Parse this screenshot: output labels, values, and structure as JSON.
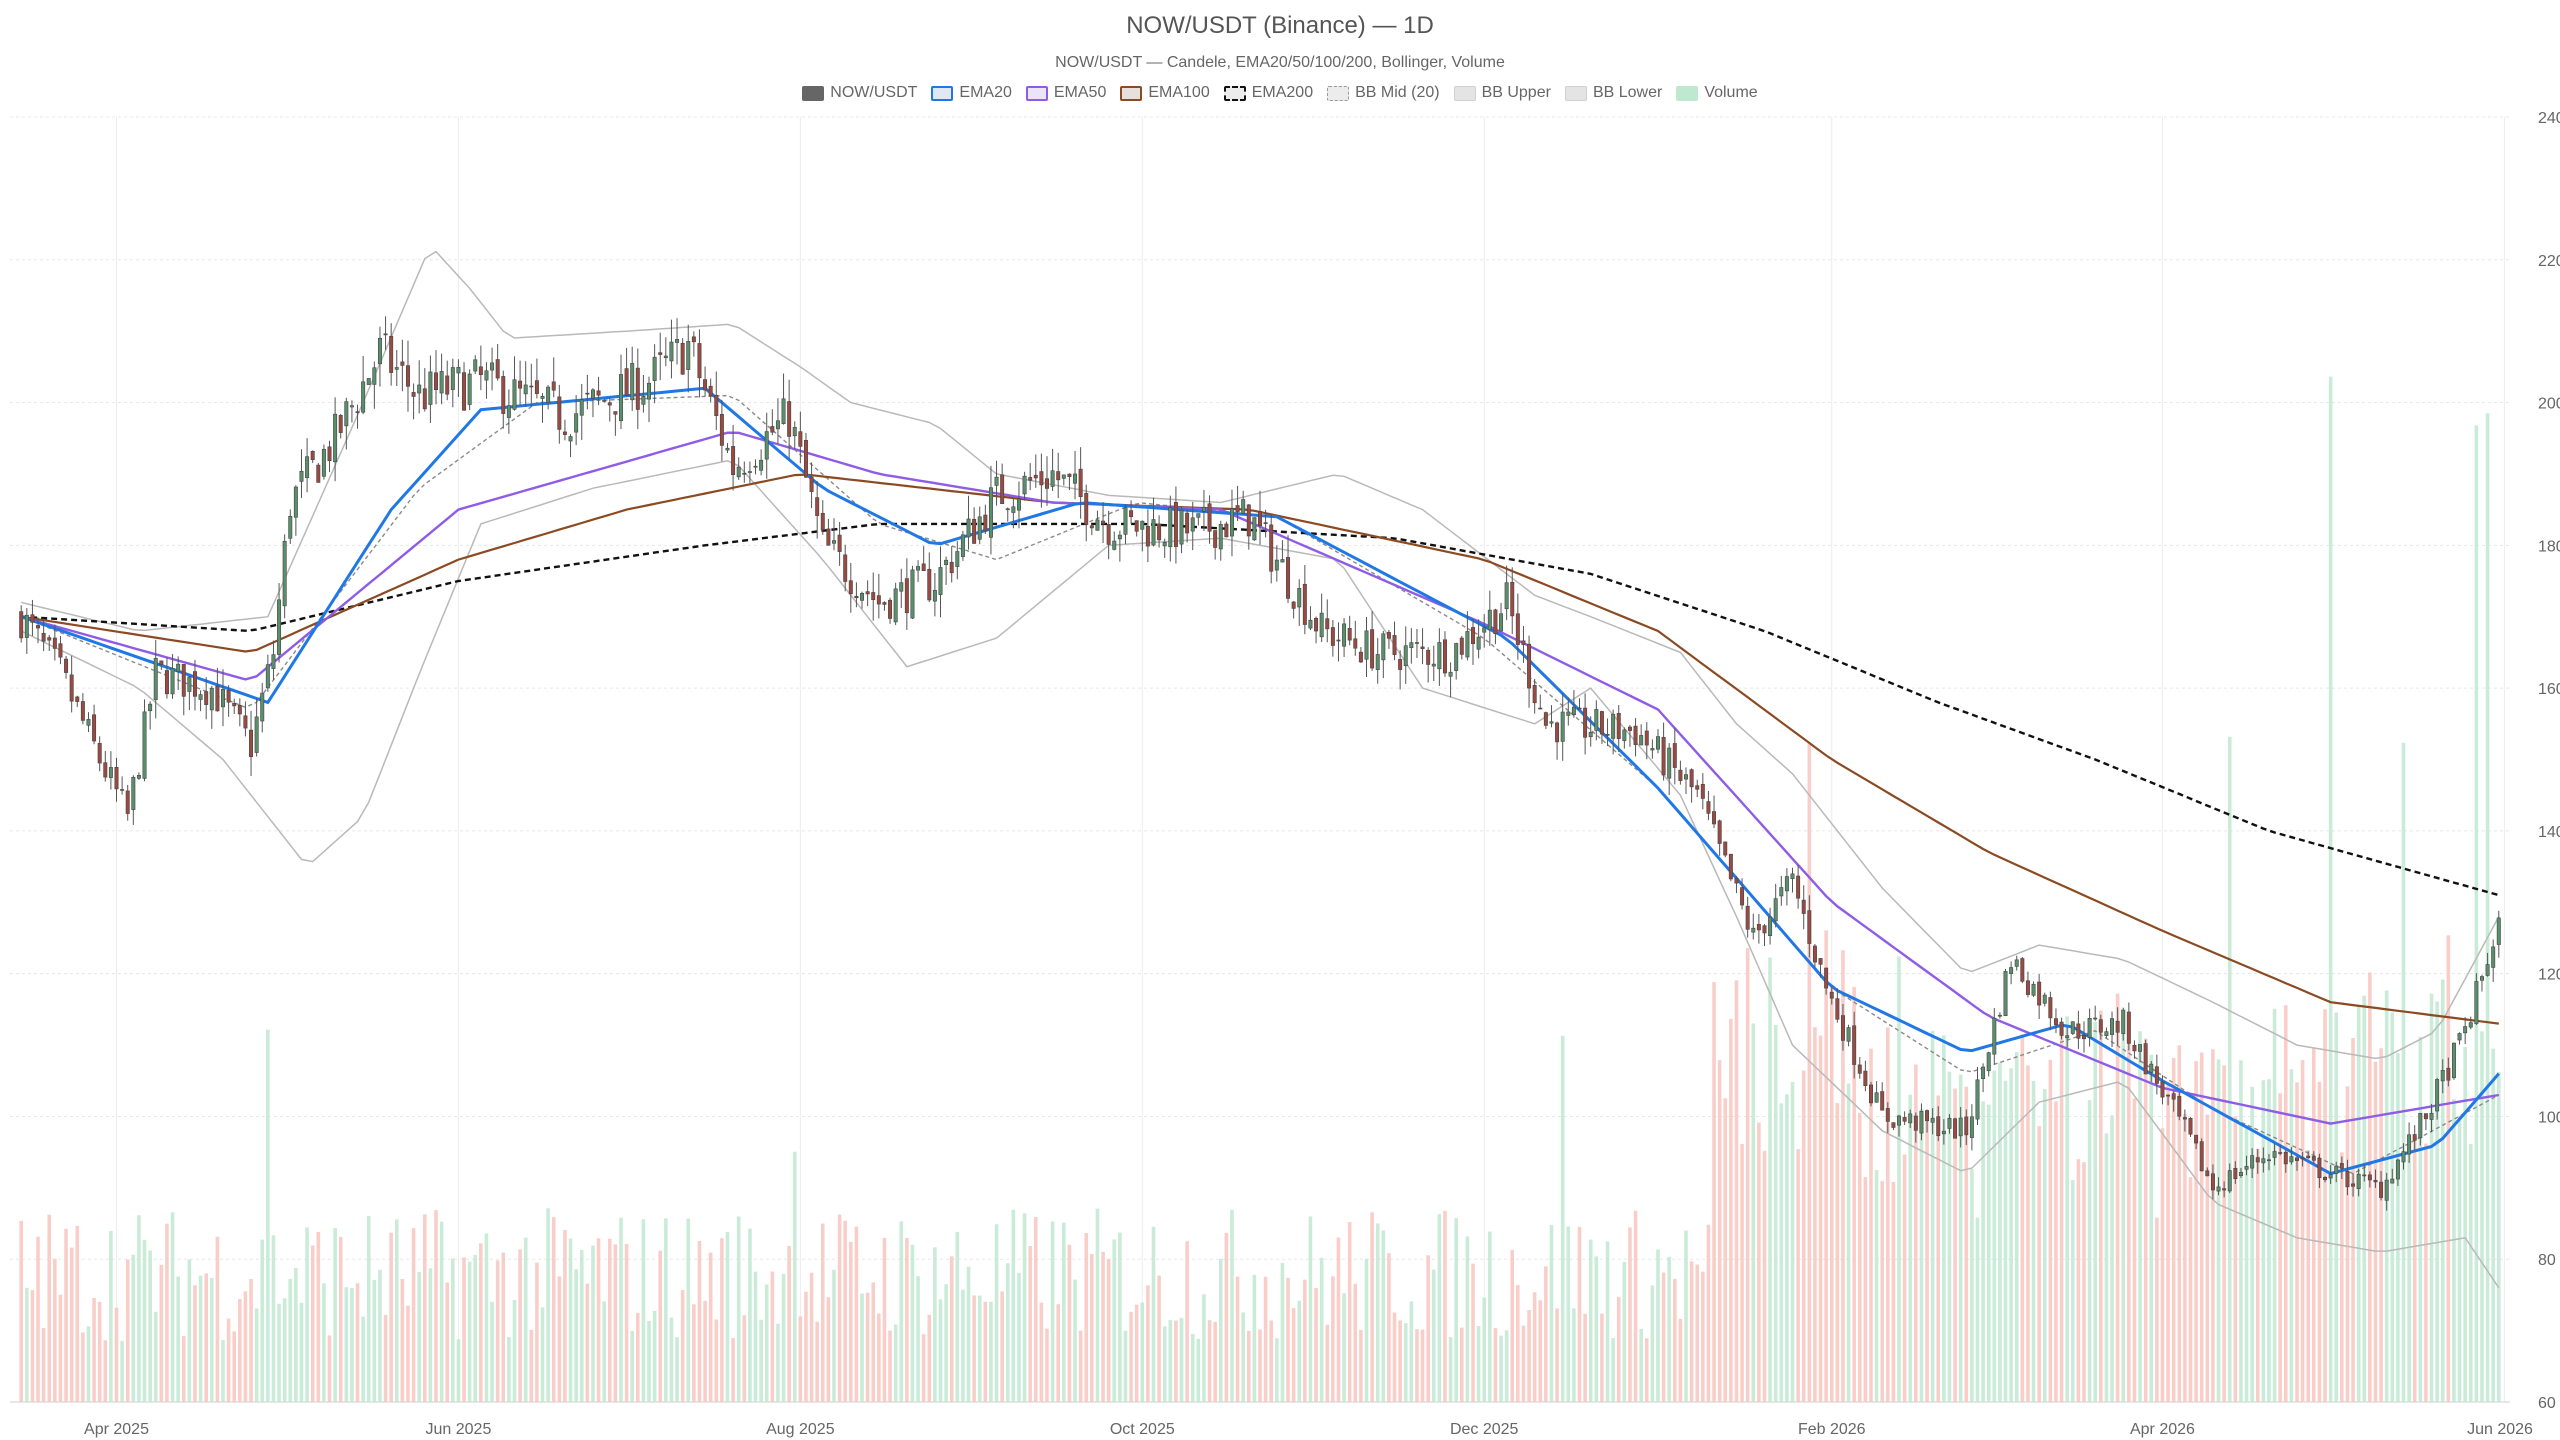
{
  "chart_data": {
    "type": "candlestick",
    "title": "NOW/USDT (Binance) — 1D",
    "subtitle": "NOW/USDT — Candele, EMA20/50/100/200, Bollinger, Volume",
    "ylim": [
      60,
      240
    ],
    "y_ticks": [
      60,
      80,
      100,
      120,
      140,
      160,
      180,
      200,
      220,
      240
    ],
    "x_range": [
      "2025-03-15",
      "2026-05-31"
    ],
    "x_ticks": [
      {
        "date": "2025-04-01",
        "label": "Apr 2025"
      },
      {
        "date": "2025-06-01",
        "label": "Jun 2025"
      },
      {
        "date": "2025-08-01",
        "label": "Aug 2025"
      },
      {
        "date": "2025-10-01",
        "label": "Oct 2025"
      },
      {
        "date": "2025-12-01",
        "label": "Dec 2025"
      },
      {
        "date": "2026-02-01",
        "label": "Feb 2026"
      },
      {
        "date": "2026-04-01",
        "label": "Apr 2026"
      },
      {
        "date": "2026-06-01",
        "label": "Jun 2026"
      }
    ],
    "grid": true,
    "legend_position": "top",
    "colors": {
      "up": "#5a8f6c",
      "down": "#9b4a41",
      "ema20": "#1f78e6",
      "ema50": "#8e5ce6",
      "ema100": "#8b4a22",
      "ema200": "#111111",
      "bb": "#b9b9b9",
      "vol_up": "#bfe8d0",
      "vol_down": "#f8c6bf"
    },
    "legend": [
      {
        "label": "NOW/USDT",
        "swatch": "candle"
      },
      {
        "label": "EMA20",
        "swatch": "ema20"
      },
      {
        "label": "EMA50",
        "swatch": "ema50"
      },
      {
        "label": "EMA100",
        "swatch": "ema100"
      },
      {
        "label": "EMA200",
        "swatch": "ema200"
      },
      {
        "label": "BB Mid (20)",
        "swatch": "bbmid"
      },
      {
        "label": "BB Upper",
        "swatch": "bb"
      },
      {
        "label": "BB Lower",
        "swatch": "bb"
      },
      {
        "label": "Volume",
        "swatch": "volume"
      }
    ],
    "close_anchors": [
      [
        "2025-03-15",
        170
      ],
      [
        "2025-03-22",
        162
      ],
      [
        "2025-03-29",
        150
      ],
      [
        "2025-04-03",
        142
      ],
      [
        "2025-04-08",
        162
      ],
      [
        "2025-04-18",
        160
      ],
      [
        "2025-04-25",
        152
      ],
      [
        "2025-04-29",
        165
      ],
      [
        "2025-05-02",
        186
      ],
      [
        "2025-05-10",
        195
      ],
      [
        "2025-05-18",
        207
      ],
      [
        "2025-05-25",
        201
      ],
      [
        "2025-06-05",
        203
      ],
      [
        "2025-06-20",
        198
      ],
      [
        "2025-07-05",
        203
      ],
      [
        "2025-07-12",
        208
      ],
      [
        "2025-07-20",
        191
      ],
      [
        "2025-07-30",
        198
      ],
      [
        "2025-08-05",
        180
      ],
      [
        "2025-08-15",
        172
      ],
      [
        "2025-08-25",
        175
      ],
      [
        "2025-09-05",
        187
      ],
      [
        "2025-09-15",
        190
      ],
      [
        "2025-09-25",
        183
      ],
      [
        "2025-10-10",
        182
      ],
      [
        "2025-10-20",
        184
      ],
      [
        "2025-11-02",
        168
      ],
      [
        "2025-11-12",
        165
      ],
      [
        "2025-11-25",
        165
      ],
      [
        "2025-12-05",
        172
      ],
      [
        "2025-12-12",
        155
      ],
      [
        "2025-12-28",
        154
      ],
      [
        "2026-01-08",
        145
      ],
      [
        "2026-01-18",
        125
      ],
      [
        "2026-01-25",
        133
      ],
      [
        "2026-01-31",
        118
      ],
      [
        "2026-02-10",
        100
      ],
      [
        "2026-02-25",
        98
      ],
      [
        "2026-03-05",
        122
      ],
      [
        "2026-03-15",
        112
      ],
      [
        "2026-03-25",
        113
      ],
      [
        "2026-04-05",
        98
      ],
      [
        "2026-04-10",
        90
      ],
      [
        "2026-04-20",
        95
      ],
      [
        "2026-05-01",
        92
      ],
      [
        "2026-05-10",
        90
      ],
      [
        "2026-05-18",
        100
      ],
      [
        "2026-05-25",
        112
      ],
      [
        "2026-05-31",
        127
      ]
    ],
    "ema20": [
      [
        "2025-03-15",
        170
      ],
      [
        "2025-04-28",
        158
      ],
      [
        "2025-05-20",
        185
      ],
      [
        "2025-06-05",
        199
      ],
      [
        "2025-07-15",
        202
      ],
      [
        "2025-08-05",
        188
      ],
      [
        "2025-08-25",
        180
      ],
      [
        "2025-09-20",
        186
      ],
      [
        "2025-10-25",
        184
      ],
      [
        "2025-12-05",
        167
      ],
      [
        "2026-01-01",
        146
      ],
      [
        "2026-02-01",
        118
      ],
      [
        "2026-02-25",
        109
      ],
      [
        "2026-03-15",
        113
      ],
      [
        "2026-04-01",
        105
      ],
      [
        "2026-05-01",
        92
      ],
      [
        "2026-05-20",
        96
      ],
      [
        "2026-05-31",
        106
      ]
    ],
    "ema50": [
      [
        "2025-03-15",
        170
      ],
      [
        "2025-04-25",
        161
      ],
      [
        "2025-06-01",
        185
      ],
      [
        "2025-07-20",
        196
      ],
      [
        "2025-08-15",
        190
      ],
      [
        "2025-09-15",
        186
      ],
      [
        "2025-10-15",
        185
      ],
      [
        "2025-12-01",
        169
      ],
      [
        "2026-01-01",
        157
      ],
      [
        "2026-02-01",
        130
      ],
      [
        "2026-03-01",
        114
      ],
      [
        "2026-04-01",
        104
      ],
      [
        "2026-05-01",
        99
      ],
      [
        "2026-05-31",
        103
      ]
    ],
    "ema100": [
      [
        "2025-03-15",
        170
      ],
      [
        "2025-04-25",
        165
      ],
      [
        "2025-06-01",
        178
      ],
      [
        "2025-07-01",
        185
      ],
      [
        "2025-08-01",
        190
      ],
      [
        "2025-09-15",
        186
      ],
      [
        "2025-10-20",
        185
      ],
      [
        "2025-12-01",
        178
      ],
      [
        "2026-01-01",
        168
      ],
      [
        "2026-02-01",
        150
      ],
      [
        "2026-03-01",
        137
      ],
      [
        "2026-04-01",
        126
      ],
      [
        "2026-05-01",
        116
      ],
      [
        "2026-05-31",
        113
      ]
    ],
    "ema200": [
      [
        "2025-03-15",
        170
      ],
      [
        "2025-04-25",
        168
      ],
      [
        "2025-06-01",
        175
      ],
      [
        "2025-07-15",
        180
      ],
      [
        "2025-08-15",
        183
      ],
      [
        "2025-10-01",
        183
      ],
      [
        "2025-11-15",
        181
      ],
      [
        "2025-12-20",
        176
      ],
      [
        "2026-01-20",
        168
      ],
      [
        "2026-02-20",
        158
      ],
      [
        "2026-03-20",
        150
      ],
      [
        "2026-04-20",
        140
      ],
      [
        "2026-05-31",
        131
      ]
    ],
    "bb_mid": [
      [
        "2025-03-15",
        170
      ],
      [
        "2025-04-25",
        157
      ],
      [
        "2025-05-25",
        188
      ],
      [
        "2025-06-15",
        200
      ],
      [
        "2025-07-20",
        201
      ],
      [
        "2025-08-15",
        183
      ],
      [
        "2025-09-05",
        178
      ],
      [
        "2025-09-30",
        186
      ],
      [
        "2025-10-25",
        184
      ],
      [
        "2025-12-01",
        167
      ],
      [
        "2026-01-01",
        146
      ],
      [
        "2026-02-01",
        118
      ],
      [
        "2026-02-25",
        106
      ],
      [
        "2026-03-20",
        112
      ],
      [
        "2026-04-10",
        101
      ],
      [
        "2026-05-05",
        92
      ],
      [
        "2026-05-31",
        103
      ]
    ],
    "bb_upper": [
      [
        "2025-03-15",
        172
      ],
      [
        "2025-04-05",
        168
      ],
      [
        "2025-04-28",
        170
      ],
      [
        "2025-05-15",
        200
      ],
      [
        "2025-05-27",
        222
      ],
      [
        "2025-06-03",
        216
      ],
      [
        "2025-06-10",
        209
      ],
      [
        "2025-07-01",
        210
      ],
      [
        "2025-07-20",
        211
      ],
      [
        "2025-08-01",
        205
      ],
      [
        "2025-08-10",
        200
      ],
      [
        "2025-08-25",
        197
      ],
      [
        "2025-09-05",
        190
      ],
      [
        "2025-09-25",
        187
      ],
      [
        "2025-10-15",
        186
      ],
      [
        "2025-11-05",
        190
      ],
      [
        "2025-11-20",
        185
      ],
      [
        "2025-12-10",
        173
      ],
      [
        "2025-12-20",
        170
      ],
      [
        "2026-01-05",
        165
      ],
      [
        "2026-01-15",
        155
      ],
      [
        "2026-01-25",
        148
      ],
      [
        "2026-02-10",
        132
      ],
      [
        "2026-02-25",
        120
      ],
      [
        "2026-03-10",
        124
      ],
      [
        "2026-03-25",
        122
      ],
      [
        "2026-04-10",
        116
      ],
      [
        "2026-04-25",
        110
      ],
      [
        "2026-05-10",
        108
      ],
      [
        "2026-05-20",
        112
      ],
      [
        "2026-05-31",
        128
      ]
    ],
    "bb_lower": [
      [
        "2025-03-15",
        168
      ],
      [
        "2025-04-05",
        160
      ],
      [
        "2025-04-20",
        150
      ],
      [
        "2025-05-05",
        135
      ],
      [
        "2025-05-15",
        142
      ],
      [
        "2025-05-25",
        162
      ],
      [
        "2025-06-05",
        183
      ],
      [
        "2025-06-25",
        188
      ],
      [
        "2025-07-20",
        192
      ],
      [
        "2025-08-05",
        178
      ],
      [
        "2025-08-20",
        163
      ],
      [
        "2025-09-05",
        167
      ],
      [
        "2025-09-25",
        180
      ],
      [
        "2025-10-15",
        181
      ],
      [
        "2025-11-05",
        178
      ],
      [
        "2025-11-20",
        160
      ],
      [
        "2025-12-10",
        155
      ],
      [
        "2025-12-20",
        160
      ],
      [
        "2026-01-05",
        145
      ],
      [
        "2026-01-15",
        128
      ],
      [
        "2026-01-25",
        110
      ],
      [
        "2026-02-10",
        98
      ],
      [
        "2026-02-25",
        92
      ],
      [
        "2026-03-10",
        102
      ],
      [
        "2026-03-25",
        105
      ],
      [
        "2026-04-10",
        88
      ],
      [
        "2026-04-25",
        83
      ],
      [
        "2026-05-10",
        81
      ],
      [
        "2026-05-25",
        83
      ],
      [
        "2026-05-31",
        76
      ]
    ],
    "volume_scale_max": 200,
    "volume_spikes": [
      {
        "date": "2025-04-28",
        "value": 61
      },
      {
        "date": "2025-07-31",
        "value": 41
      },
      {
        "date": "2025-12-15",
        "value": 60
      },
      {
        "date": "2026-01-28",
        "value": 108
      },
      {
        "date": "2026-02-05",
        "value": 68
      },
      {
        "date": "2026-04-13",
        "value": 109
      },
      {
        "date": "2026-05-01",
        "value": 168
      },
      {
        "date": "2026-05-14",
        "value": 108
      },
      {
        "date": "2026-05-27",
        "value": 160
      },
      {
        "date": "2026-05-29",
        "value": 162
      }
    ]
  }
}
